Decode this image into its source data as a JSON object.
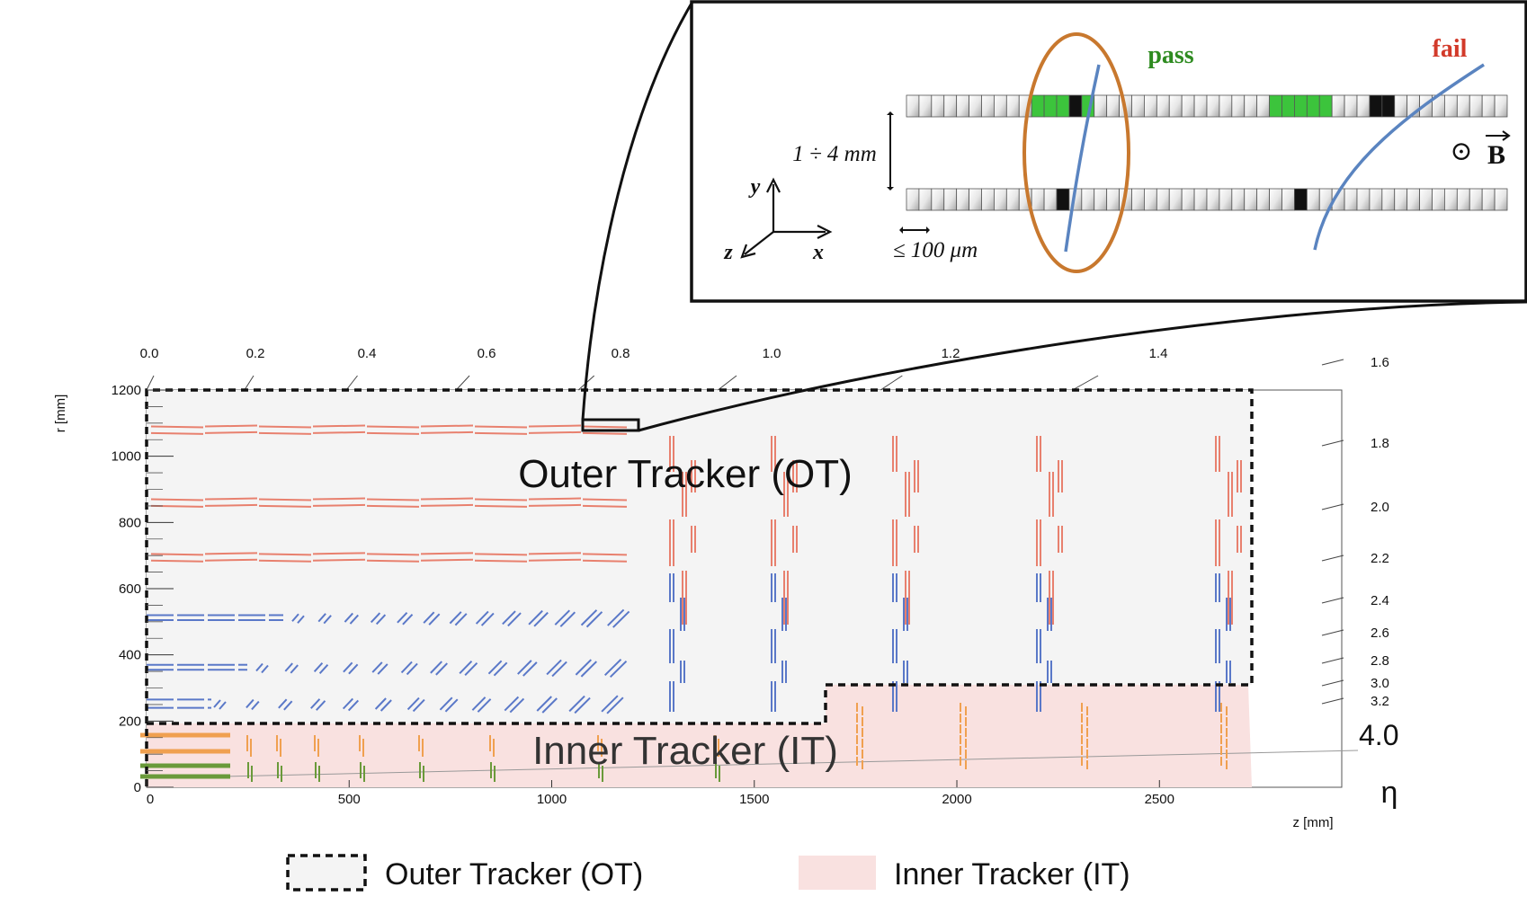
{
  "main_plot": {
    "x_axis": {
      "label": "z [mm]",
      "ticks": [
        "0",
        "500",
        "1000",
        "1500",
        "2000",
        "2500"
      ],
      "range": [
        0,
        2950
      ]
    },
    "y_axis": {
      "label": "r [mm]",
      "ticks": [
        "0",
        "200",
        "400",
        "600",
        "800",
        "1000",
        "1200"
      ],
      "range": [
        0,
        1200
      ]
    },
    "eta_symbol": "η",
    "eta_labels": [
      "0.0",
      "0.2",
      "0.4",
      "0.6",
      "0.8",
      "1.0",
      "1.2",
      "1.4",
      "1.6",
      "1.8",
      "2.0",
      "2.2",
      "2.4",
      "2.6",
      "2.8",
      "3.0",
      "3.2",
      "4.0"
    ],
    "region_labels": {
      "outer": "Outer Tracker (OT)",
      "inner": "Inner Tracker (IT)"
    }
  },
  "inset": {
    "pass_label": "pass",
    "fail_label": "fail",
    "gap_label": "1 ÷ 4 mm",
    "pitch_label": "≤ 100 μm",
    "axis_y": "y",
    "axis_z": "z",
    "axis_x": "x",
    "field_label": "B",
    "field_symbol": "⊙"
  },
  "legend": {
    "outer": "Outer Tracker (OT)",
    "inner": "Inner Tracker (IT)"
  },
  "colors": {
    "ot_fill": "#f4f4f4",
    "it_fill": "#f9e1e0",
    "ps_module": "#5a78c8",
    "ss_module": "#e8806e",
    "it_orange": "#f0a050",
    "it_green": "#6a9a3a",
    "pass_green": "#3cc43c",
    "pass_text": "#2e8b20",
    "fail_text": "#d23a2a",
    "ellipse": "#c8782e",
    "track": "#5a84c0"
  }
}
